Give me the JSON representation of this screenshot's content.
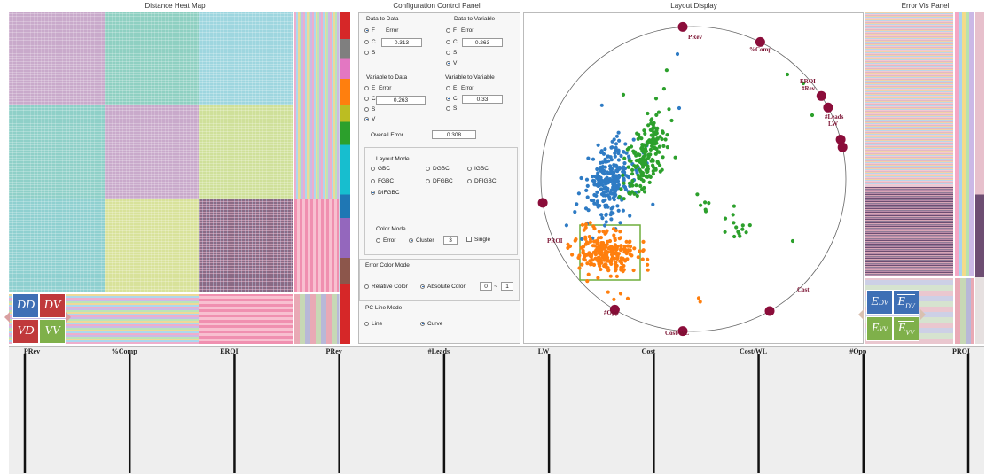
{
  "panels": {
    "heatmap_title": "Distance  Heat Map",
    "config_title": "Configuration Control Panel",
    "layout_title": "Layout Display",
    "error_title": "Error Vis Panel"
  },
  "heatmap_buttons": {
    "dd": "DD",
    "dv": "DV",
    "vd": "VD",
    "vv": "VV"
  },
  "error_buttons": {
    "e": "E",
    "dv": "DV",
    "vv": "VV"
  },
  "config": {
    "data_to_data": {
      "title": "Data to Data",
      "options": [
        "F",
        "C",
        "S"
      ],
      "selected": "F",
      "error_label": "Error",
      "error_value": "0.313"
    },
    "data_to_variable": {
      "title": "Data to Variable",
      "options": [
        "F",
        "C",
        "S",
        "V"
      ],
      "selected": "V",
      "error_label": "Error",
      "error_value": "0.263"
    },
    "variable_to_data": {
      "title": "Variable to Data",
      "options": [
        "E",
        "C",
        "S",
        "V"
      ],
      "selected": "V",
      "error_label": "Error",
      "error_value": "0.263"
    },
    "variable_to_variable": {
      "title": "Variable to Variable",
      "options": [
        "E",
        "C",
        "S"
      ],
      "selected": "C",
      "error_label": "Error",
      "error_value": "0.33"
    },
    "overall_error_label": "Overall Error",
    "overall_error_value": "0.308",
    "layout_mode": {
      "title": "Layout Mode",
      "options": [
        "GBC",
        "DGBC",
        "IGBC",
        "FGBC",
        "DFGBC",
        "DFIGBC",
        "DIFGBC"
      ],
      "selected": "DIFGBC"
    },
    "color_mode": {
      "title": "Color Mode",
      "options": [
        "Error",
        "Cluster"
      ],
      "selected": "Cluster",
      "cluster_value": "3",
      "single_label": "Single"
    },
    "error_color_mode": {
      "title": "Error Color Mode",
      "options": [
        "Relative Color",
        "Absolute Color"
      ],
      "selected": "Absolute Color",
      "min": "0",
      "max": "1",
      "tilde": "~"
    },
    "pc_line_mode": {
      "title": "PC Line Mode",
      "options": [
        "Line",
        "Curve"
      ],
      "selected": "Curve"
    }
  },
  "layout_display": {
    "anchors": [
      "PRev",
      "%Comp",
      "EROI",
      "#Rev",
      "#Leads",
      "LW",
      "Cost",
      "Cost/WL",
      "#Opp",
      "PROI"
    ],
    "cluster_colors": {
      "blue": "#2e7bc4",
      "green": "#2ca02c",
      "orange": "#ff7f0e"
    },
    "anchor_color": "#8b0d3a"
  },
  "pc_axes": [
    "PRev",
    "%Comp",
    "EROI",
    "PRev",
    "#Leads",
    "LW",
    "Cost",
    "Cost/WL",
    "#Opp",
    "PROI"
  ]
}
